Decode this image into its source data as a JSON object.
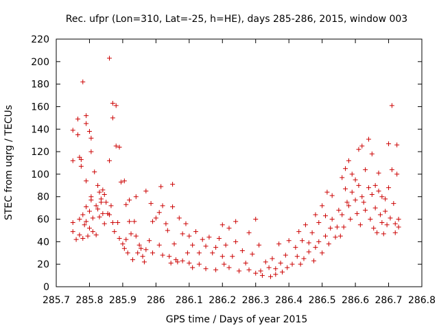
{
  "chart_data": {
    "type": "scatter",
    "title": "Rec. ufpr (Lon=310, Lat=-25, h=HE), days 285-286, 2015, window 003",
    "xlabel": "GPS time / Days of year 2015",
    "ylabel": "STEC from uqrg / TECUs",
    "xlim": [
      285.7,
      286.8
    ],
    "ylim": [
      0,
      220
    ],
    "xticks": [
      "285.7",
      "285.8",
      "285.9",
      "286",
      "286.1",
      "286.2",
      "286.3",
      "286.4",
      "286.5",
      "286.6",
      "286.7",
      "286.8"
    ],
    "yticks": [
      "0",
      "20",
      "40",
      "60",
      "80",
      "100",
      "120",
      "140",
      "160",
      "180",
      "200",
      "220"
    ],
    "grid": false,
    "legend": "none",
    "marker": "plus",
    "color": "#cc0000",
    "series": [
      {
        "points": [
          [
            285.75,
            139
          ],
          [
            285.75,
            112
          ],
          [
            285.75,
            57
          ],
          [
            285.75,
            49
          ],
          [
            285.76,
            42
          ],
          [
            285.765,
            149
          ],
          [
            285.765,
            135
          ],
          [
            285.77,
            115
          ],
          [
            285.77,
            60
          ],
          [
            285.77,
            46
          ],
          [
            285.775,
            113
          ],
          [
            285.775,
            107
          ],
          [
            285.78,
            182
          ],
          [
            285.78,
            64
          ],
          [
            285.78,
            43
          ],
          [
            285.785,
            55
          ],
          [
            285.79,
            152
          ],
          [
            285.79,
            145
          ],
          [
            285.79,
            94
          ],
          [
            285.79,
            71
          ],
          [
            285.79,
            58
          ],
          [
            285.795,
            45
          ],
          [
            285.8,
            138
          ],
          [
            285.8,
            67
          ],
          [
            285.8,
            52
          ],
          [
            285.805,
            132
          ],
          [
            285.805,
            120
          ],
          [
            285.805,
            80
          ],
          [
            285.805,
            77
          ],
          [
            285.81,
            61
          ],
          [
            285.81,
            49
          ],
          [
            285.815,
            102
          ],
          [
            285.82,
            72
          ],
          [
            285.82,
            46
          ],
          [
            285.825,
            90
          ],
          [
            285.825,
            69
          ],
          [
            285.83,
            84
          ],
          [
            285.83,
            62
          ],
          [
            285.835,
            78
          ],
          [
            285.835,
            75
          ],
          [
            285.84,
            86
          ],
          [
            285.84,
            65
          ],
          [
            285.845,
            82
          ],
          [
            285.845,
            56
          ],
          [
            285.85,
            75
          ],
          [
            285.855,
            65
          ],
          [
            285.86,
            203
          ],
          [
            285.86,
            112
          ],
          [
            285.86,
            64
          ],
          [
            285.865,
            72
          ],
          [
            285.87,
            163
          ],
          [
            285.87,
            150
          ],
          [
            285.87,
            57
          ],
          [
            285.875,
            49
          ],
          [
            285.88,
            161
          ],
          [
            285.88,
            125
          ],
          [
            285.885,
            57
          ],
          [
            285.89,
            124
          ],
          [
            285.89,
            43
          ],
          [
            285.895,
            93
          ],
          [
            285.9,
            38
          ],
          [
            285.905,
            94
          ],
          [
            285.905,
            34
          ],
          [
            285.91,
            73
          ],
          [
            285.91,
            42
          ],
          [
            285.915,
            30
          ],
          [
            285.92,
            77
          ],
          [
            285.92,
            58
          ],
          [
            285.925,
            47
          ],
          [
            285.93,
            24
          ],
          [
            285.935,
            58
          ],
          [
            285.94,
            80
          ],
          [
            285.94,
            45
          ],
          [
            285.945,
            30
          ],
          [
            285.95,
            37
          ],
          [
            285.955,
            34
          ],
          [
            285.96,
            27
          ],
          [
            285.965,
            22
          ],
          [
            285.97,
            85
          ],
          [
            285.97,
            33
          ],
          [
            285.98,
            41
          ],
          [
            285.985,
            74
          ],
          [
            285.99,
            58
          ],
          [
            285.99,
            30
          ],
          [
            286.0,
            61
          ],
          [
            286.01,
            66
          ],
          [
            286.01,
            37
          ],
          [
            286.015,
            89
          ],
          [
            286.02,
            72
          ],
          [
            286.02,
            28
          ],
          [
            286.03,
            56
          ],
          [
            286.035,
            50
          ],
          [
            286.04,
            27
          ],
          [
            286.045,
            21
          ],
          [
            286.05,
            91
          ],
          [
            286.05,
            71
          ],
          [
            286.055,
            38
          ],
          [
            286.06,
            24
          ],
          [
            286.065,
            22
          ],
          [
            286.07,
            61
          ],
          [
            286.08,
            47
          ],
          [
            286.08,
            23
          ],
          [
            286.09,
            56
          ],
          [
            286.095,
            30
          ],
          [
            286.1,
            45
          ],
          [
            286.1,
            21
          ],
          [
            286.11,
            37
          ],
          [
            286.11,
            17
          ],
          [
            286.12,
            49
          ],
          [
            286.13,
            30
          ],
          [
            286.13,
            20
          ],
          [
            286.14,
            42
          ],
          [
            286.15,
            36
          ],
          [
            286.15,
            16
          ],
          [
            286.16,
            44
          ],
          [
            286.17,
            30
          ],
          [
            286.18,
            35
          ],
          [
            286.18,
            15
          ],
          [
            286.19,
            43
          ],
          [
            286.2,
            55
          ],
          [
            286.2,
            27
          ],
          [
            286.205,
            20
          ],
          [
            286.21,
            37
          ],
          [
            286.22,
            52
          ],
          [
            286.22,
            17
          ],
          [
            286.23,
            27
          ],
          [
            286.24,
            58
          ],
          [
            286.24,
            40
          ],
          [
            286.25,
            14
          ],
          [
            286.26,
            32
          ],
          [
            286.27,
            21
          ],
          [
            286.28,
            48
          ],
          [
            286.28,
            15
          ],
          [
            286.29,
            29
          ],
          [
            286.3,
            60
          ],
          [
            286.3,
            12
          ],
          [
            286.31,
            37
          ],
          [
            286.315,
            14
          ],
          [
            286.32,
            10
          ],
          [
            286.33,
            22
          ],
          [
            286.34,
            17
          ],
          [
            286.345,
            9
          ],
          [
            286.35,
            25
          ],
          [
            286.36,
            16
          ],
          [
            286.36,
            11
          ],
          [
            286.37,
            38
          ],
          [
            286.375,
            21
          ],
          [
            286.38,
            13
          ],
          [
            286.39,
            28
          ],
          [
            286.395,
            17
          ],
          [
            286.4,
            41
          ],
          [
            286.41,
            20
          ],
          [
            286.42,
            35
          ],
          [
            286.425,
            27
          ],
          [
            286.43,
            49
          ],
          [
            286.435,
            20
          ],
          [
            286.44,
            41
          ],
          [
            286.445,
            25
          ],
          [
            286.45,
            55
          ],
          [
            286.46,
            39
          ],
          [
            286.46,
            31
          ],
          [
            286.47,
            48
          ],
          [
            286.475,
            23
          ],
          [
            286.48,
            64
          ],
          [
            286.48,
            35
          ],
          [
            286.49,
            57
          ],
          [
            286.49,
            40
          ],
          [
            286.5,
            72
          ],
          [
            286.5,
            30
          ],
          [
            286.51,
            63
          ],
          [
            286.51,
            45
          ],
          [
            286.515,
            84
          ],
          [
            286.52,
            38
          ],
          [
            286.525,
            52
          ],
          [
            286.53,
            81
          ],
          [
            286.53,
            60
          ],
          [
            286.54,
            44
          ],
          [
            286.545,
            53
          ],
          [
            286.55,
            68
          ],
          [
            286.555,
            45
          ],
          [
            286.56,
            97
          ],
          [
            286.56,
            64
          ],
          [
            286.565,
            53
          ],
          [
            286.57,
            105
          ],
          [
            286.57,
            87
          ],
          [
            286.575,
            75
          ],
          [
            286.58,
            112
          ],
          [
            286.58,
            72
          ],
          [
            286.585,
            60
          ],
          [
            286.59,
            100
          ],
          [
            286.59,
            84
          ],
          [
            286.6,
            95
          ],
          [
            286.6,
            77
          ],
          [
            286.605,
            65
          ],
          [
            286.61,
            122
          ],
          [
            286.61,
            90
          ],
          [
            286.615,
            55
          ],
          [
            286.62,
            125
          ],
          [
            286.62,
            80
          ],
          [
            286.625,
            75
          ],
          [
            286.63,
            104
          ],
          [
            286.63,
            68
          ],
          [
            286.64,
            131
          ],
          [
            286.64,
            88
          ],
          [
            286.645,
            60
          ],
          [
            286.65,
            118
          ],
          [
            286.65,
            82
          ],
          [
            286.655,
            52
          ],
          [
            286.66,
            90
          ],
          [
            286.66,
            70
          ],
          [
            286.665,
            48
          ],
          [
            286.67,
            101
          ],
          [
            286.67,
            85
          ],
          [
            286.675,
            64
          ],
          [
            286.68,
            80
          ],
          [
            286.68,
            57
          ],
          [
            286.685,
            47
          ],
          [
            286.69,
            78
          ],
          [
            286.69,
            67
          ],
          [
            286.695,
            55
          ],
          [
            286.7,
            127
          ],
          [
            286.7,
            88
          ],
          [
            286.705,
            61
          ],
          [
            286.71,
            161
          ],
          [
            286.71,
            104
          ],
          [
            286.715,
            74
          ],
          [
            286.72,
            56
          ],
          [
            286.72,
            48
          ],
          [
            286.725,
            126
          ],
          [
            286.725,
            100
          ],
          [
            286.73,
            60
          ],
          [
            286.73,
            53
          ]
        ]
      }
    ]
  }
}
